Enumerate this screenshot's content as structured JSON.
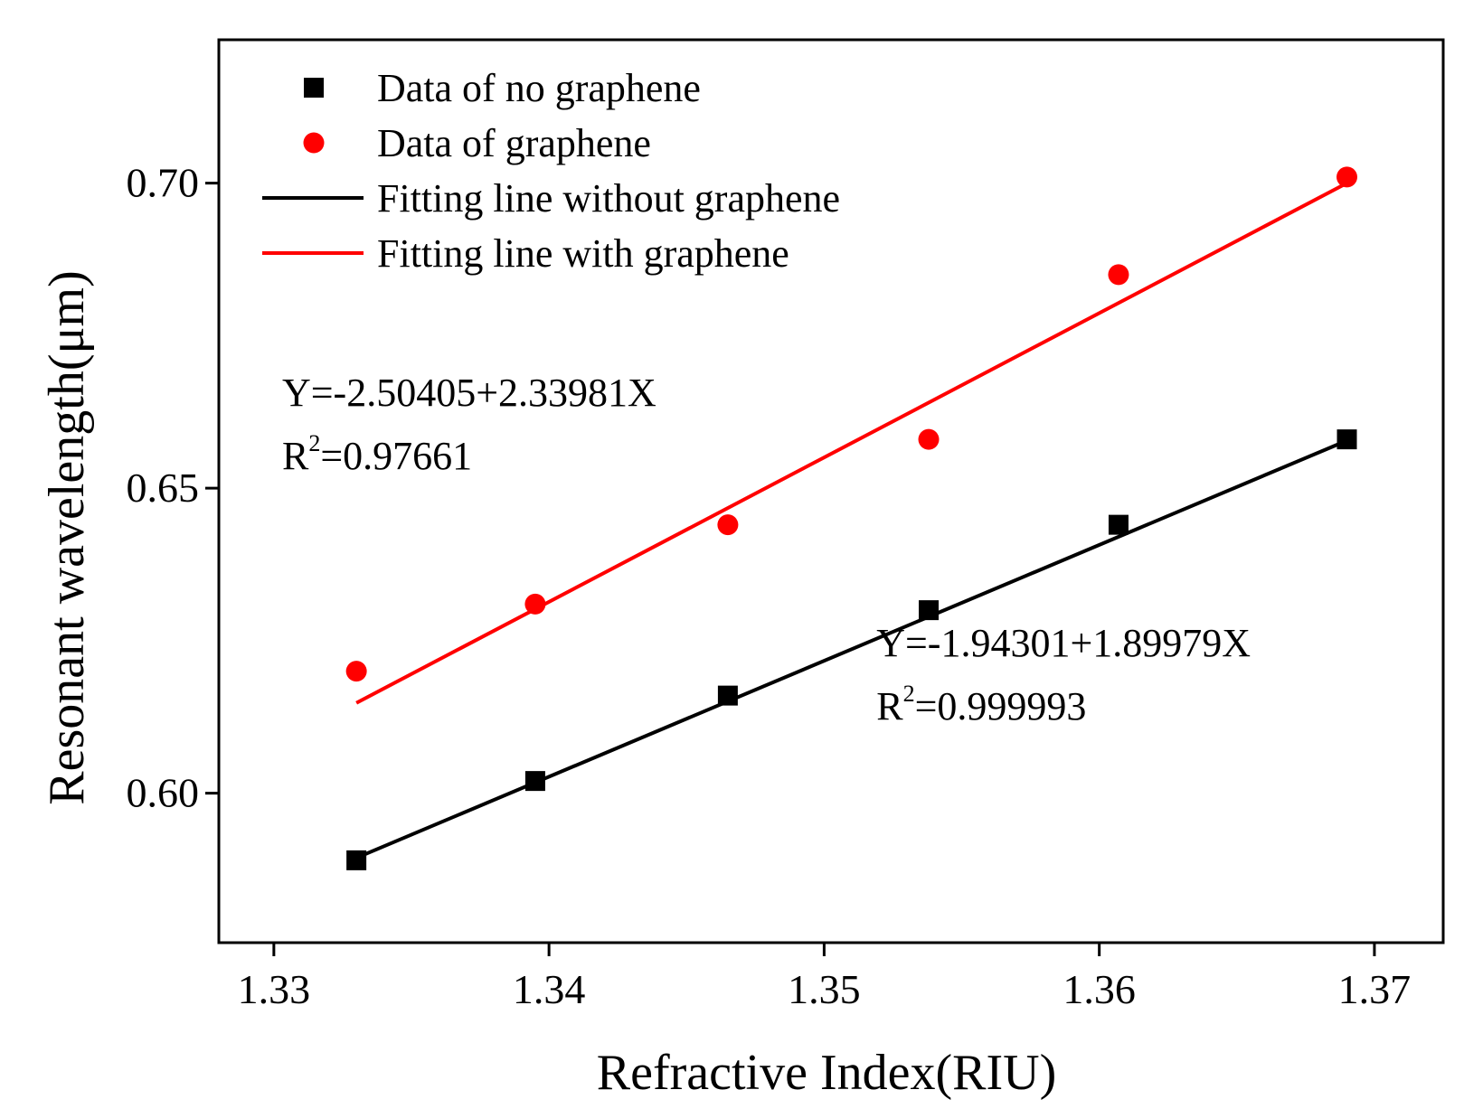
{
  "chart_data": {
    "type": "scatter",
    "xlabel": "Refractive Index(RIU)",
    "ylabel": "Resonant wavelength(μm)",
    "xlim": [
      1.328,
      1.3725
    ],
    "ylim": [
      0.5755,
      0.7235
    ],
    "xticks": [
      1.33,
      1.34,
      1.35,
      1.36,
      1.37
    ],
    "xtick_labels": [
      "1.33",
      "1.34",
      "1.35",
      "1.36",
      "1.37"
    ],
    "yticks": [
      0.6,
      0.65,
      0.7
    ],
    "ytick_labels": [
      "0.60",
      "0.65",
      "0.70"
    ],
    "legend_position": "top-left",
    "series": [
      {
        "name": "Data of no graphene",
        "kind": "scatter",
        "marker": "square",
        "color": "#000000",
        "x": [
          1.333,
          1.3395,
          1.3465,
          1.3538,
          1.3607,
          1.369
        ],
        "y": [
          0.589,
          0.602,
          0.616,
          0.63,
          0.644,
          0.658
        ]
      },
      {
        "name": "Data of graphene",
        "kind": "scatter",
        "marker": "circle",
        "color": "#ff0000",
        "x": [
          1.333,
          1.3395,
          1.3465,
          1.3538,
          1.3607,
          1.369
        ],
        "y": [
          0.62,
          0.631,
          0.644,
          0.658,
          0.685,
          0.701
        ]
      },
      {
        "name": "Fitting line without graphene",
        "kind": "line",
        "color": "#000000",
        "x": [
          1.333,
          1.369
        ],
        "y": [
          0.5894,
          0.6578
        ]
      },
      {
        "name": "Fitting line with graphene",
        "kind": "line",
        "color": "#ff0000",
        "x": [
          1.333,
          1.369
        ],
        "y": [
          0.6148,
          0.7
        ]
      }
    ],
    "annotations": [
      {
        "name": "fit-equation-graphene",
        "equation": "Y=-2.50405+2.33981X",
        "r2_prefix": "R",
        "r2_exp": "2",
        "r2_value": "=0.97661",
        "x": 1.3303,
        "y": 0.6635
      },
      {
        "name": "fit-equation-no-graphene",
        "equation": "Y=-1.94301+1.89979X",
        "r2_prefix": "R",
        "r2_exp": "2",
        "r2_value": "=0.999993",
        "x": 1.3519,
        "y": 0.6225
      }
    ]
  }
}
